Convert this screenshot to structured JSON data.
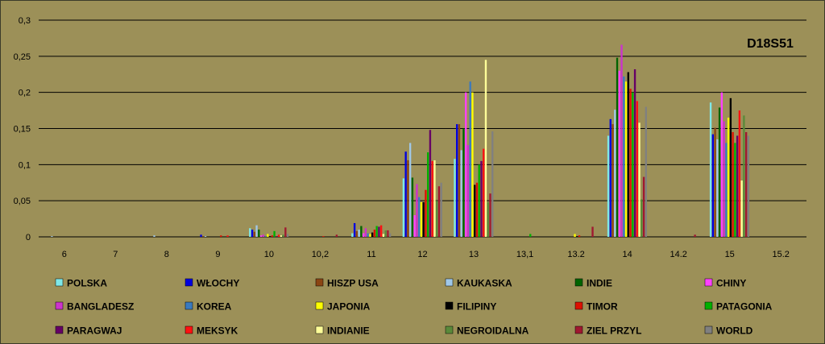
{
  "chart_data": {
    "type": "bar",
    "title": "D18S51",
    "xlabel": "",
    "ylabel": "",
    "ylim": [
      0,
      0.3
    ],
    "yticks": [
      "0",
      "0,05",
      "0,1",
      "0,15",
      "0,2",
      "0,25",
      "0,3"
    ],
    "ytick_values": [
      0,
      0.05,
      0.1,
      0.15,
      0.2,
      0.25,
      0.3
    ],
    "grid": true,
    "legend_position": "bottom",
    "categories": [
      "6",
      "7",
      "8",
      "9",
      "10",
      "10,2",
      "11",
      "12",
      "13",
      "13,1",
      "13.2",
      "14",
      "14.2",
      "15",
      "15.2"
    ],
    "series": [
      {
        "name": "POLSKA",
        "color": "#7fe8e8",
        "values": [
          0,
          0,
          0,
          0,
          0.012,
          0,
          0.005,
          0.081,
          0.108,
          0,
          0,
          0.14,
          0,
          0.186,
          0
        ]
      },
      {
        "name": "WŁOCHY",
        "color": "#0000e0",
        "values": [
          0,
          0,
          0,
          0.003,
          0.01,
          0,
          0.019,
          0.118,
          0.156,
          0,
          0,
          0.163,
          0,
          0.142,
          0
        ]
      },
      {
        "name": "HISZP USA",
        "color": "#8b4513",
        "values": [
          0,
          0,
          0,
          0.001,
          0.007,
          0,
          0.008,
          0.106,
          0.156,
          0,
          0,
          0.156,
          0,
          0.151,
          0
        ]
      },
      {
        "name": "KAUKASKA",
        "color": "#a0c8e8",
        "values": [
          0.001,
          0,
          0.002,
          0.001,
          0.016,
          0,
          0.01,
          0.13,
          0.12,
          0,
          0,
          0.176,
          0,
          0.135,
          0
        ]
      },
      {
        "name": "INDIE",
        "color": "#006400",
        "values": [
          0,
          0,
          0,
          0,
          0.01,
          0,
          0.015,
          0.082,
          0.15,
          0,
          0,
          0.248,
          0,
          0.179,
          0
        ]
      },
      {
        "name": "CHINY",
        "color": "#ff40ff",
        "values": [
          0,
          0,
          0,
          0,
          0.002,
          0,
          0.005,
          0.03,
          0.2,
          0,
          0,
          0.23,
          0,
          0.2,
          0
        ]
      },
      {
        "name": "BANGLADESZ",
        "color": "#cc33cc",
        "values": [
          0,
          0,
          0,
          0,
          0.003,
          0,
          0.012,
          0.073,
          0.127,
          0,
          0,
          0.266,
          0,
          0.16,
          0
        ]
      },
      {
        "name": "KOREA",
        "color": "#3a7abf",
        "values": [
          0,
          0,
          0,
          0,
          0.001,
          0,
          0.005,
          0.055,
          0.215,
          0,
          0,
          0.222,
          0,
          0.13,
          0
        ]
      },
      {
        "name": "JAPONIA",
        "color": "#ffff00",
        "values": [
          0,
          0,
          0,
          0,
          0.004,
          0,
          0.004,
          0.048,
          0.2,
          0,
          0.004,
          0.215,
          0,
          0.165,
          0
        ]
      },
      {
        "name": "FILIPINY",
        "color": "#000000",
        "values": [
          0,
          0,
          0,
          0,
          0.001,
          0,
          0.006,
          0.048,
          0.072,
          0,
          0.001,
          0.228,
          0,
          0.192,
          0
        ]
      },
      {
        "name": "TIMOR",
        "color": "#dd1100",
        "values": [
          0,
          0,
          0,
          0.002,
          0.002,
          0.001,
          0.01,
          0.065,
          0.075,
          0,
          0.002,
          0.205,
          0,
          0.145,
          0
        ]
      },
      {
        "name": "PATAGONIA",
        "color": "#00b000",
        "values": [
          0,
          0,
          0,
          0,
          0.008,
          0,
          0.015,
          0.117,
          0.1,
          0.004,
          0,
          0.2,
          0,
          0.13,
          0
        ]
      },
      {
        "name": "PARAGWAJ",
        "color": "#660066",
        "values": [
          0,
          0,
          0,
          0,
          0.001,
          0,
          0.014,
          0.148,
          0.105,
          0,
          0,
          0.232,
          0,
          0.14,
          0
        ]
      },
      {
        "name": "MEKSYK",
        "color": "#ff1111",
        "values": [
          0,
          0,
          0,
          0.002,
          0.003,
          0,
          0.016,
          0.105,
          0.122,
          0,
          0,
          0.188,
          0,
          0.175,
          0
        ]
      },
      {
        "name": "INDIANIE",
        "color": "#ffff99",
        "values": [
          0,
          0,
          0,
          0,
          0.002,
          0,
          0.004,
          0.106,
          0.245,
          0,
          0,
          0.158,
          0,
          0.078,
          0
        ]
      },
      {
        "name": "NEGROIDALNA",
        "color": "#5a8a3a",
        "values": [
          0,
          0,
          0,
          0,
          0.003,
          0,
          0.009,
          0.05,
          0.048,
          0,
          0,
          0.052,
          0,
          0.168,
          0
        ]
      },
      {
        "name": "ZIEL PRZYL",
        "color": "#a01830",
        "values": [
          0,
          0,
          0,
          0,
          0.013,
          0.003,
          0.009,
          0.07,
          0.06,
          0,
          0.014,
          0.083,
          0.003,
          0.145,
          0
        ]
      },
      {
        "name": "WORLD",
        "color": "#808080",
        "values": [
          0,
          0,
          0,
          0,
          0.004,
          0,
          0.005,
          0.075,
          0.146,
          0,
          0,
          0.18,
          0,
          0.14,
          0
        ]
      }
    ]
  }
}
